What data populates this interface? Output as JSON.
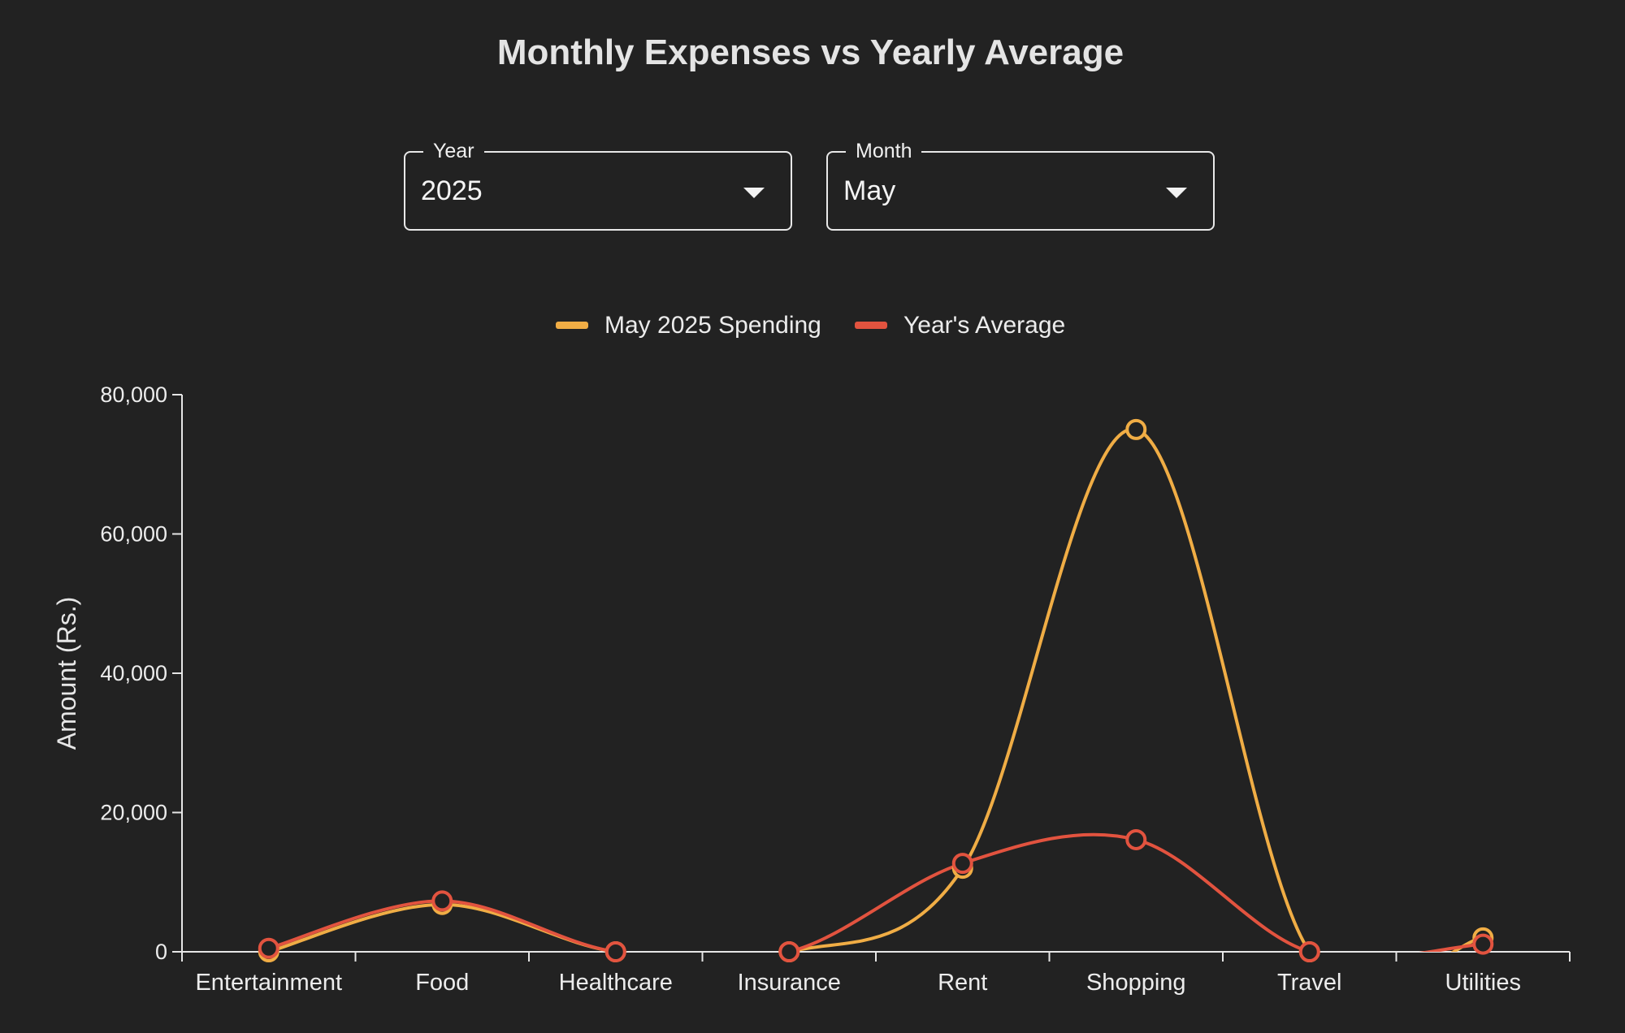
{
  "title": "Monthly Expenses vs Yearly Average",
  "controls": {
    "year": {
      "label": "Year",
      "value": "2025"
    },
    "month": {
      "label": "Month",
      "value": "May"
    }
  },
  "colors": {
    "background": "#222222",
    "monthly": "#f0ad45",
    "average": "#e2533f",
    "axis": "#e6e6e6"
  },
  "chart_data": {
    "type": "line",
    "curve": "smooth",
    "categories": [
      "Entertainment",
      "Food",
      "Healthcare",
      "Insurance",
      "Rent",
      "Shopping",
      "Travel",
      "Utilities"
    ],
    "series": [
      {
        "name": "May 2025 Spending",
        "values": [
          0,
          6800,
          0,
          0,
          12000,
          75000,
          0,
          2000
        ]
      },
      {
        "name": "Year's Average",
        "values": [
          500,
          7300,
          0,
          0,
          12700,
          16100,
          0,
          1100
        ]
      }
    ],
    "ylabel": "Amount (Rs.)",
    "xlabel": "",
    "ylim": [
      0,
      80000
    ],
    "yticks": [
      0,
      20000,
      40000,
      60000,
      80000
    ],
    "ytick_labels": [
      "0",
      "20,000",
      "40,000",
      "60,000",
      "80,000"
    ],
    "legend": "top-center",
    "grid": false
  }
}
